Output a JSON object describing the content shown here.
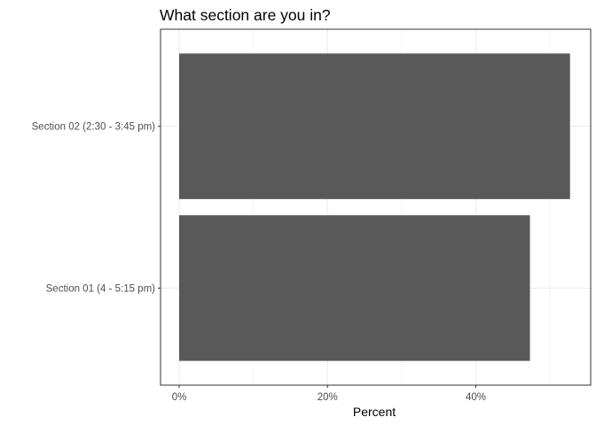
{
  "chart_data": {
    "type": "bar",
    "orientation": "horizontal",
    "title": "What section are you in?",
    "xlabel": "Percent",
    "ylabel": "",
    "categories": [
      "Section 01 (4 - 5:15 pm)",
      "Section 02 (2:30 - 3:45 pm)"
    ],
    "values": [
      0.473,
      0.527
    ],
    "xlim": [
      0,
      0.55
    ],
    "xticks": [
      0,
      0.2,
      0.4
    ],
    "xtick_labels": [
      "0%",
      "20%",
      "40%"
    ],
    "grid": true,
    "legend": "none",
    "bar_color": "#595959",
    "grid_color": "#ebebeb"
  }
}
